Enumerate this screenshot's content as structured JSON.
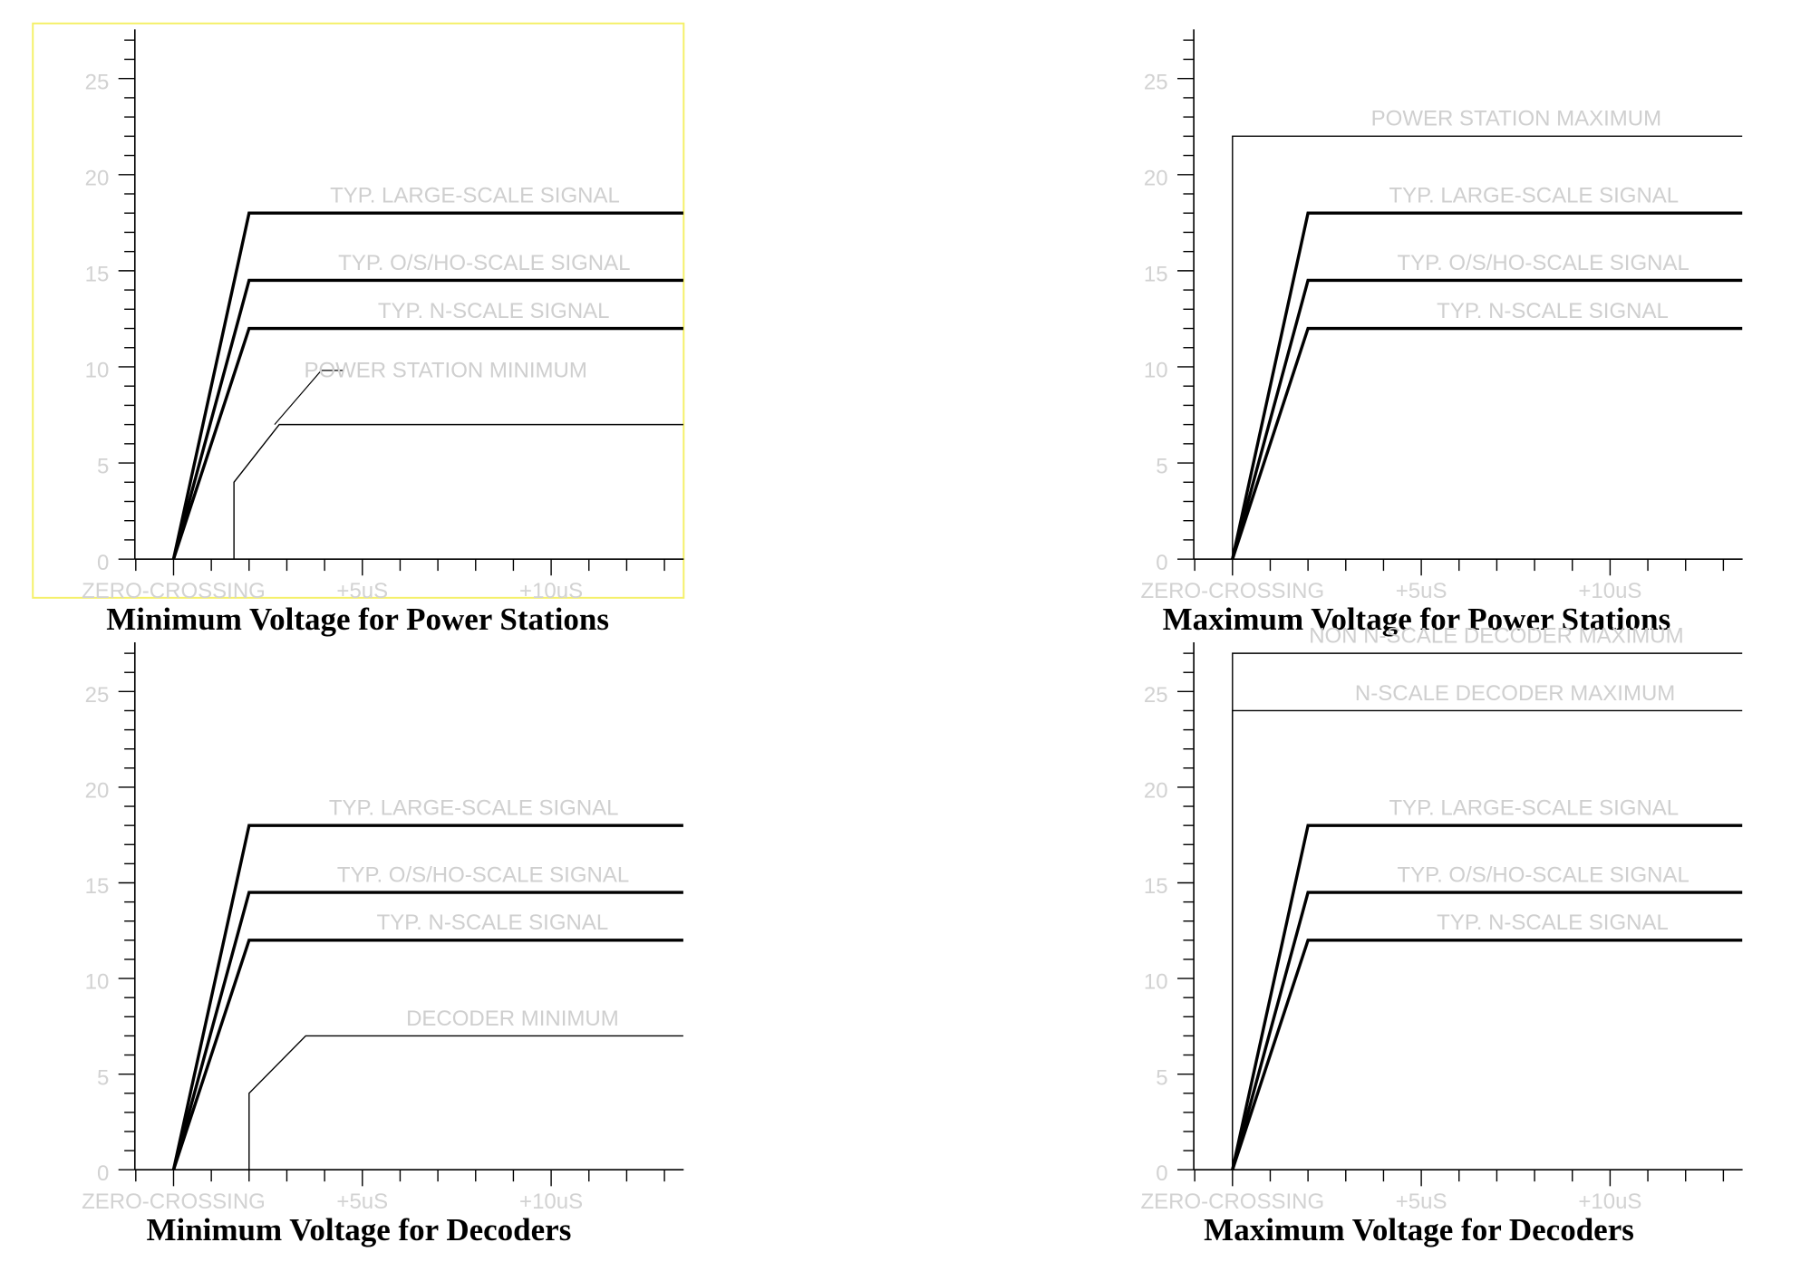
{
  "chart_data": [
    {
      "type": "line",
      "title": "Minimum Voltage for Power Stations",
      "xlabel": "",
      "ylabel": "",
      "xlim": [
        -1,
        13.5
      ],
      "ylim": [
        0,
        28
      ],
      "y_ticks": [
        "0",
        "5",
        "10",
        "15",
        "20",
        "25"
      ],
      "x_tick_labels": [
        {
          "x": 0,
          "label": "ZERO-CROSSING"
        },
        {
          "x": 5,
          "label": "+5uS"
        },
        {
          "x": 10,
          "label": "+10uS"
        }
      ],
      "series": [
        {
          "name": "TYP. LARGE-SCALE SIGNAL",
          "emphasis": "bold",
          "x": [
            0,
            2,
            13.5
          ],
          "y": [
            0,
            18,
            18
          ]
        },
        {
          "name": "TYP. O/S/HO-SCALE SIGNAL",
          "emphasis": "bold",
          "x": [
            0,
            2,
            13.5
          ],
          "y": [
            0,
            14.5,
            14.5
          ]
        },
        {
          "name": "TYP. N-SCALE SIGNAL",
          "emphasis": "bold",
          "x": [
            0,
            2,
            13.5
          ],
          "y": [
            0,
            12,
            12
          ]
        },
        {
          "name": "POWER STATION MINIMUM",
          "emphasis": "thin",
          "x": [
            1.6,
            1.6,
            2.8,
            13.5
          ],
          "y": [
            0,
            4,
            7,
            7
          ]
        }
      ],
      "highlighted": true
    },
    {
      "type": "line",
      "title": "Maximum Voltage for Power Stations",
      "xlabel": "",
      "ylabel": "",
      "xlim": [
        -1,
        13.5
      ],
      "ylim": [
        0,
        28
      ],
      "y_ticks": [
        "0",
        "5",
        "10",
        "15",
        "20",
        "25"
      ],
      "x_tick_labels": [
        {
          "x": 0,
          "label": "ZERO-CROSSING"
        },
        {
          "x": 5,
          "label": "+5uS"
        },
        {
          "x": 10,
          "label": "+10uS"
        }
      ],
      "series": [
        {
          "name": "POWER STATION MAXIMUM",
          "emphasis": "thin",
          "x": [
            0,
            0,
            13.5
          ],
          "y": [
            0,
            22,
            22
          ]
        },
        {
          "name": "TYP. LARGE-SCALE SIGNAL",
          "emphasis": "bold",
          "x": [
            0,
            2,
            13.5
          ],
          "y": [
            0,
            18,
            18
          ]
        },
        {
          "name": "TYP. O/S/HO-SCALE SIGNAL",
          "emphasis": "bold",
          "x": [
            0,
            2,
            13.5
          ],
          "y": [
            0,
            14.5,
            14.5
          ]
        },
        {
          "name": "TYP. N-SCALE SIGNAL",
          "emphasis": "bold",
          "x": [
            0,
            2,
            13.5
          ],
          "y": [
            0,
            12,
            12
          ]
        }
      ],
      "highlighted": false
    },
    {
      "type": "line",
      "title": "Minimum Voltage for Decoders",
      "xlabel": "",
      "ylabel": "",
      "xlim": [
        -1,
        13.5
      ],
      "ylim": [
        0,
        28
      ],
      "y_ticks": [
        "0",
        "5",
        "10",
        "15",
        "20",
        "25"
      ],
      "x_tick_labels": [
        {
          "x": 0,
          "label": "ZERO-CROSSING"
        },
        {
          "x": 5,
          "label": "+5uS"
        },
        {
          "x": 10,
          "label": "+10uS"
        }
      ],
      "series": [
        {
          "name": "TYP. LARGE-SCALE SIGNAL",
          "emphasis": "bold",
          "x": [
            0,
            2,
            13.5
          ],
          "y": [
            0,
            18,
            18
          ]
        },
        {
          "name": "TYP. O/S/HO-SCALE SIGNAL",
          "emphasis": "bold",
          "x": [
            0,
            2,
            13.5
          ],
          "y": [
            0,
            14.5,
            14.5
          ]
        },
        {
          "name": "TYP. N-SCALE SIGNAL",
          "emphasis": "bold",
          "x": [
            0,
            2,
            13.5
          ],
          "y": [
            0,
            12,
            12
          ]
        },
        {
          "name": "DECODER MINIMUM",
          "emphasis": "thin",
          "x": [
            2,
            2,
            3.5,
            13.5
          ],
          "y": [
            0,
            4,
            7,
            7
          ]
        }
      ],
      "highlighted": false
    },
    {
      "type": "line",
      "title": "Maximum Voltage for Decoders",
      "xlabel": "",
      "ylabel": "",
      "xlim": [
        -1,
        13.5
      ],
      "ylim": [
        0,
        28
      ],
      "y_ticks": [
        "0",
        "5",
        "10",
        "15",
        "20",
        "25"
      ],
      "x_tick_labels": [
        {
          "x": 0,
          "label": "ZERO-CROSSING"
        },
        {
          "x": 5,
          "label": "+5uS"
        },
        {
          "x": 10,
          "label": "+10uS"
        }
      ],
      "series": [
        {
          "name": "NON N-SCALE DECODER MAXIMUM",
          "emphasis": "thin",
          "x": [
            0,
            0,
            13.5
          ],
          "y": [
            0,
            27,
            27
          ]
        },
        {
          "name": "N-SCALE DECODER MAXIMUM",
          "emphasis": "thin",
          "x": [
            0,
            0,
            13.5
          ],
          "y": [
            0,
            24,
            24
          ]
        },
        {
          "name": "TYP. LARGE-SCALE SIGNAL",
          "emphasis": "bold",
          "x": [
            0,
            2,
            13.5
          ],
          "y": [
            0,
            18,
            18
          ]
        },
        {
          "name": "TYP. O/S/HO-SCALE SIGNAL",
          "emphasis": "bold",
          "x": [
            0,
            2,
            13.5
          ],
          "y": [
            0,
            14.5,
            14.5
          ]
        },
        {
          "name": "TYP. N-SCALE SIGNAL",
          "emphasis": "bold",
          "x": [
            0,
            2,
            13.5
          ],
          "y": [
            0,
            12,
            12
          ]
        }
      ],
      "highlighted": false
    }
  ],
  "colors": {
    "line": "#000000",
    "faint_text": "#d2d2d2",
    "highlight_border": "#f5f06a",
    "background": "#ffffff"
  }
}
